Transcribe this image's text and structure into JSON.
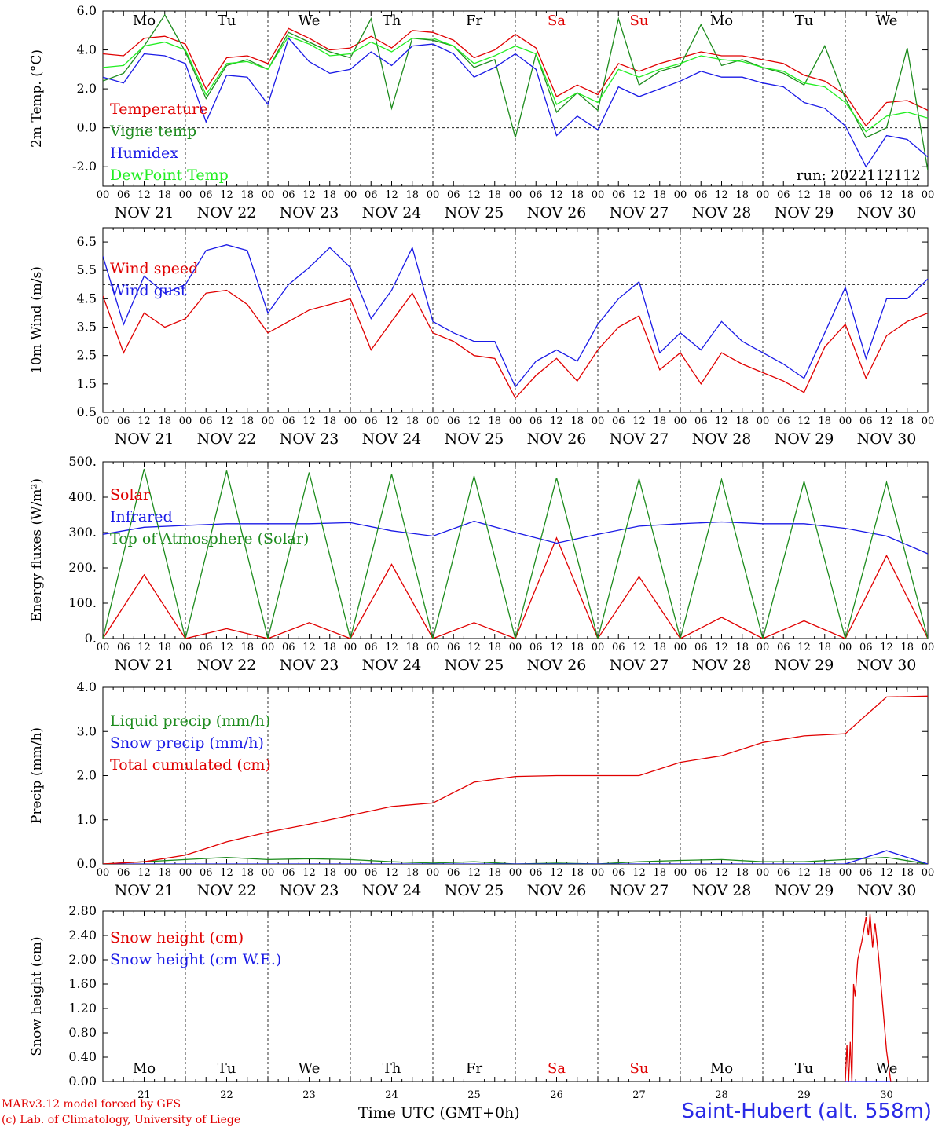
{
  "credits": {
    "line1": "MARv3.12 model forced by GFS",
    "line2": "(c) Lab. of Climatology, University of Liege"
  },
  "x_title": "Time UTC (GMT+0h)",
  "station": "Saint-Hubert (alt. 558m)",
  "colors": {
    "red": "#e00000",
    "darkgreen": "#1e8c1e",
    "blue": "#1a1ae6",
    "lightgreen": "#22ee22",
    "axis": "#000000"
  },
  "time_axis": {
    "days": [
      "NOV 21",
      "NOV 22",
      "NOV 23",
      "NOV 24",
      "NOV 25",
      "NOV 26",
      "NOV 27",
      "NOV 28",
      "NOV 29",
      "NOV 30"
    ],
    "weekdays": [
      "Mo",
      "Tu",
      "We",
      "Th",
      "Fr",
      "Sa",
      "Su",
      "Mo",
      "Tu",
      "We"
    ],
    "weekend_color": "#e00000",
    "weekday_color": "#000000",
    "bottom_day_numbers": [
      "21",
      "22",
      "23",
      "24",
      "25",
      "26",
      "27",
      "28",
      "29",
      "30"
    ],
    "hour_ticks": [
      "00",
      "06",
      "12",
      "18"
    ],
    "final_tick": "00"
  },
  "chart_data": [
    {
      "type": "line",
      "ylabel": "2m Temp. (°C)",
      "ylim": [
        -3.0,
        6.0
      ],
      "yticks": [
        -2.0,
        0.0,
        2.0,
        4.0,
        6.0
      ],
      "ytick_labels": [
        "-2.0",
        "0.0",
        "2.0",
        "4.0",
        "6.0"
      ],
      "reference_line": 0.0,
      "annotation": "run: 2022112112",
      "show_weekdays": true,
      "x": [
        0,
        0.25,
        0.5,
        0.75,
        1,
        1.25,
        1.5,
        1.75,
        2,
        2.25,
        2.5,
        2.75,
        3,
        3.25,
        3.5,
        3.75,
        4,
        4.25,
        4.5,
        4.75,
        5,
        5.25,
        5.5,
        5.75,
        6,
        6.25,
        6.5,
        6.75,
        7,
        7.25,
        7.5,
        7.75,
        8,
        8.25,
        8.5,
        8.75,
        9,
        9.25,
        9.5,
        9.75,
        10
      ],
      "series": [
        {
          "name": "Temperature",
          "color": "#e00000",
          "values": [
            3.8,
            3.7,
            4.6,
            4.7,
            4.3,
            2.0,
            3.6,
            3.7,
            3.3,
            5.1,
            4.6,
            4.0,
            4.1,
            4.7,
            4.1,
            5.0,
            4.9,
            4.5,
            3.6,
            4.0,
            4.8,
            4.1,
            1.6,
            2.2,
            1.7,
            3.3,
            2.9,
            3.3,
            3.6,
            3.9,
            3.7,
            3.7,
            3.5,
            3.3,
            2.7,
            2.4,
            1.7,
            0.1,
            1.3,
            1.4,
            0.9
          ]
        },
        {
          "name": "Vigne temp",
          "color": "#1e8c1e",
          "values": [
            2.4,
            2.8,
            4.2,
            5.8,
            3.9,
            1.5,
            3.2,
            3.5,
            3.0,
            4.9,
            4.4,
            3.9,
            3.6,
            5.6,
            1.0,
            4.6,
            4.5,
            4.2,
            3.1,
            3.5,
            -0.5,
            3.8,
            0.8,
            1.8,
            0.9,
            5.6,
            2.2,
            2.9,
            3.2,
            5.3,
            3.2,
            3.5,
            3.1,
            2.8,
            2.2,
            4.2,
            1.5,
            -0.5,
            0.0,
            4.1,
            -2.2
          ]
        },
        {
          "name": "Humidex",
          "color": "#1a1ae6",
          "values": [
            2.6,
            2.3,
            3.8,
            3.7,
            3.3,
            0.3,
            2.7,
            2.6,
            1.2,
            4.6,
            3.4,
            2.8,
            3.0,
            3.9,
            3.2,
            4.2,
            4.3,
            3.8,
            2.6,
            3.1,
            3.8,
            3.0,
            -0.4,
            0.6,
            -0.1,
            2.1,
            1.6,
            2.0,
            2.4,
            2.9,
            2.6,
            2.6,
            2.3,
            2.1,
            1.3,
            1.0,
            0.1,
            -2.0,
            -0.4,
            -0.6,
            -1.5
          ]
        },
        {
          "name": "DewPoint Temp",
          "color": "#22ee22",
          "values": [
            3.1,
            3.2,
            4.2,
            4.4,
            4.0,
            1.7,
            3.3,
            3.4,
            3.0,
            4.7,
            4.3,
            3.7,
            3.8,
            4.4,
            3.9,
            4.6,
            4.6,
            4.2,
            3.3,
            3.7,
            4.2,
            3.8,
            1.2,
            1.8,
            1.3,
            3.0,
            2.6,
            3.0,
            3.3,
            3.7,
            3.5,
            3.4,
            3.1,
            2.9,
            2.3,
            2.1,
            1.3,
            -0.2,
            0.6,
            0.8,
            0.5
          ]
        }
      ]
    },
    {
      "type": "line",
      "ylabel": "10m Wind (m/s)",
      "ylim": [
        0.5,
        7.0
      ],
      "yticks": [
        0.5,
        1.5,
        2.5,
        3.5,
        4.5,
        5.5,
        6.5
      ],
      "ytick_labels": [
        "0.5",
        "1.5",
        "2.5",
        "3.5",
        "4.5",
        "5.5",
        "6.5"
      ],
      "reference_line": 5.0,
      "show_weekdays": false,
      "x": [
        0,
        0.25,
        0.5,
        0.75,
        1,
        1.25,
        1.5,
        1.75,
        2,
        2.25,
        2.5,
        2.75,
        3,
        3.25,
        3.5,
        3.75,
        4,
        4.25,
        4.5,
        4.75,
        5,
        5.25,
        5.5,
        5.75,
        6,
        6.25,
        6.5,
        6.75,
        7,
        7.25,
        7.5,
        7.75,
        8,
        8.25,
        8.5,
        8.75,
        9,
        9.25,
        9.5,
        9.75,
        10
      ],
      "series": [
        {
          "name": "Wind speed",
          "color": "#e00000",
          "values": [
            4.6,
            2.6,
            4.0,
            3.5,
            3.8,
            4.7,
            4.8,
            4.3,
            3.3,
            3.7,
            4.1,
            4.3,
            4.5,
            2.7,
            3.7,
            4.7,
            3.3,
            3.0,
            2.5,
            2.4,
            1.0,
            1.8,
            2.4,
            1.6,
            2.7,
            3.5,
            3.9,
            2.0,
            2.6,
            1.5,
            2.6,
            2.2,
            1.9,
            1.6,
            1.2,
            2.8,
            3.6,
            1.7,
            3.2,
            3.7,
            4.0
          ]
        },
        {
          "name": "Wind gust",
          "color": "#1a1ae6",
          "values": [
            6.0,
            3.6,
            5.3,
            4.7,
            5.0,
            6.2,
            6.4,
            6.2,
            4.0,
            5.0,
            5.6,
            6.3,
            5.6,
            3.8,
            4.8,
            6.3,
            3.7,
            3.3,
            3.0,
            3.0,
            1.4,
            2.3,
            2.7,
            2.3,
            3.6,
            4.5,
            5.1,
            2.6,
            3.3,
            2.7,
            3.7,
            3.0,
            2.6,
            2.2,
            1.7,
            3.3,
            4.9,
            2.4,
            4.5,
            4.5,
            5.2
          ]
        }
      ]
    },
    {
      "type": "line",
      "ylabel": "Energy fluxes (W/m²)",
      "ylim": [
        0,
        500
      ],
      "yticks": [
        0,
        100,
        200,
        300,
        400,
        500
      ],
      "ytick_labels": [
        "0.",
        "100.",
        "200.",
        "300.",
        "400.",
        "500."
      ],
      "show_weekdays": false,
      "daily_peaks": {
        "Solar": [
          180,
          28,
          45,
          210,
          45,
          285,
          175,
          60,
          50,
          235
        ],
        "Top of Atmosphere (Solar)": [
          480,
          475,
          470,
          465,
          460,
          455,
          452,
          450,
          445,
          442
        ]
      },
      "daylight_hours": [
        7.5,
        16.0
      ],
      "x": [
        0,
        0.5,
        1,
        1.5,
        2,
        2.5,
        3,
        3.5,
        4,
        4.5,
        5,
        5.5,
        6,
        6.5,
        7,
        7.5,
        8,
        8.5,
        9,
        9.5,
        10
      ],
      "series": [
        {
          "name": "Solar",
          "color": "#e00000",
          "values": [
            0,
            180,
            0,
            28,
            0,
            45,
            0,
            210,
            0,
            45,
            0,
            285,
            0,
            175,
            0,
            60,
            0,
            50,
            0,
            235,
            0
          ]
        },
        {
          "name": "Infrared",
          "color": "#1a1ae6",
          "values": [
            295,
            315,
            320,
            325,
            325,
            325,
            328,
            305,
            290,
            332,
            300,
            270,
            295,
            318,
            325,
            330,
            325,
            325,
            312,
            290,
            240
          ]
        },
        {
          "name": "Top of Atmosphere (Solar)",
          "color": "#1e8c1e",
          "values": [
            0,
            480,
            0,
            475,
            0,
            470,
            0,
            465,
            0,
            460,
            0,
            455,
            0,
            452,
            0,
            450,
            0,
            445,
            0,
            442,
            0
          ]
        }
      ]
    },
    {
      "type": "line",
      "ylabel": "Precip (mm/h)",
      "ylim": [
        0,
        4.0
      ],
      "yticks": [
        0,
        1.0,
        2.0,
        3.0,
        4.0
      ],
      "ytick_labels": [
        "0.0",
        "1.0",
        "2.0",
        "3.0",
        "4.0"
      ],
      "show_weekdays": false,
      "x": [
        0,
        0.5,
        1,
        1.5,
        2,
        2.5,
        3,
        3.5,
        4,
        4.5,
        5,
        5.5,
        6,
        6.5,
        7,
        7.5,
        8,
        8.5,
        9,
        9.5,
        10
      ],
      "series": [
        {
          "name": "Liquid precip (mm/h)",
          "color": "#1e8c1e",
          "values": [
            0,
            0.05,
            0.1,
            0.15,
            0.1,
            0.12,
            0.1,
            0.05,
            0.02,
            0.05,
            0.0,
            0.02,
            0.0,
            0.05,
            0.08,
            0.1,
            0.05,
            0.05,
            0.1,
            0.15,
            0.0
          ]
        },
        {
          "name": "Snow precip (mm/h)",
          "color": "#1a1ae6",
          "values": [
            0,
            0,
            0,
            0,
            0,
            0,
            0,
            0,
            0,
            0,
            0,
            0,
            0,
            0,
            0,
            0,
            0,
            0,
            0,
            0.3,
            0.0
          ]
        },
        {
          "name": "Total cumulated (cm)",
          "color": "#e00000",
          "values": [
            0.0,
            0.05,
            0.2,
            0.5,
            0.72,
            0.9,
            1.1,
            1.3,
            1.38,
            1.85,
            1.98,
            2.0,
            2.0,
            2.0,
            2.3,
            2.45,
            2.75,
            2.9,
            2.95,
            3.78,
            3.8
          ]
        }
      ]
    },
    {
      "type": "line",
      "ylabel": "Snow height (cm)",
      "ylim": [
        0,
        2.8
      ],
      "yticks": [
        0,
        0.4,
        0.8,
        1.2,
        1.6,
        2.0,
        2.4,
        2.8
      ],
      "ytick_labels": [
        "0.00",
        "0.40",
        "0.80",
        "1.20",
        "1.60",
        "2.00",
        "2.40",
        "2.80"
      ],
      "show_weekdays_inside": true,
      "x": [
        9.0,
        9.02,
        9.04,
        9.06,
        9.08,
        9.1,
        9.12,
        9.15,
        9.2,
        9.25,
        9.28,
        9.3,
        9.33,
        9.36,
        9.4,
        9.45,
        9.5,
        9.55
      ],
      "series": [
        {
          "name": "Snow height (cm)",
          "color": "#e00000",
          "values": [
            0.0,
            0.6,
            0.0,
            0.65,
            0.0,
            1.6,
            1.4,
            2.0,
            2.3,
            2.7,
            2.4,
            2.75,
            2.2,
            2.6,
            2.1,
            1.3,
            0.5,
            0.0
          ]
        },
        {
          "name": "Snow height (cm W.E.)",
          "color": "#1a1ae6",
          "values": [
            0,
            0,
            0,
            0,
            0,
            0,
            0,
            0,
            0,
            0,
            0,
            0,
            0,
            0,
            0,
            0,
            0,
            0
          ]
        }
      ]
    }
  ]
}
